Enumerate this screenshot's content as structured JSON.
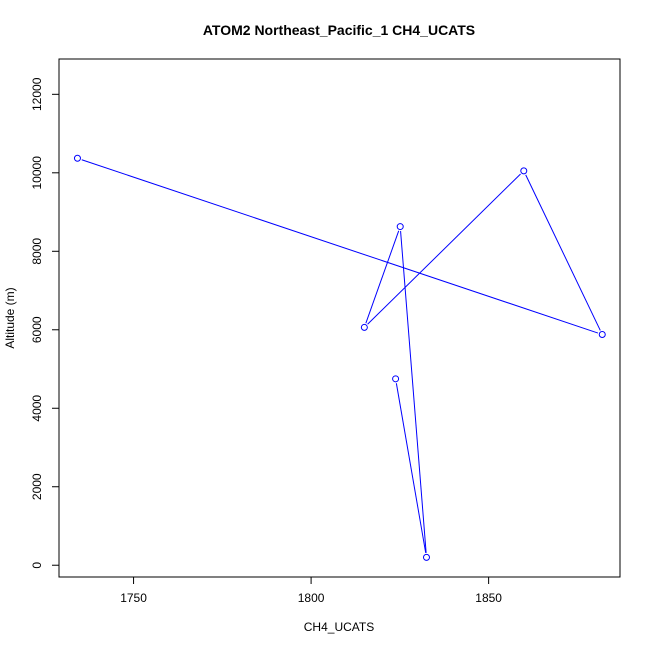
{
  "chart_data": {
    "type": "line",
    "title": "ATOM2 Northeast_Pacific_1 CH4_UCATS",
    "xlabel": "CH4_UCATS",
    "ylabel": "Altitude (m)",
    "xlim": [
      1729,
      1887
    ],
    "ylim": [
      -300,
      12900
    ],
    "x_ticks": [
      1750,
      1800,
      1850
    ],
    "y_ticks": [
      0,
      2000,
      4000,
      6000,
      8000,
      10000,
      12000
    ],
    "grid": false,
    "legend": "none",
    "series": [
      {
        "color": "#0000ff",
        "marker": "open-circle",
        "points": [
          {
            "x": 1823.8,
            "y": 4750
          },
          {
            "x": 1832.5,
            "y": 200
          },
          {
            "x": 1825.1,
            "y": 8630
          },
          {
            "x": 1815.0,
            "y": 6060
          },
          {
            "x": 1859.9,
            "y": 10050
          },
          {
            "x": 1882.0,
            "y": 5880
          },
          {
            "x": 1734.2,
            "y": 10370
          }
        ]
      }
    ]
  }
}
